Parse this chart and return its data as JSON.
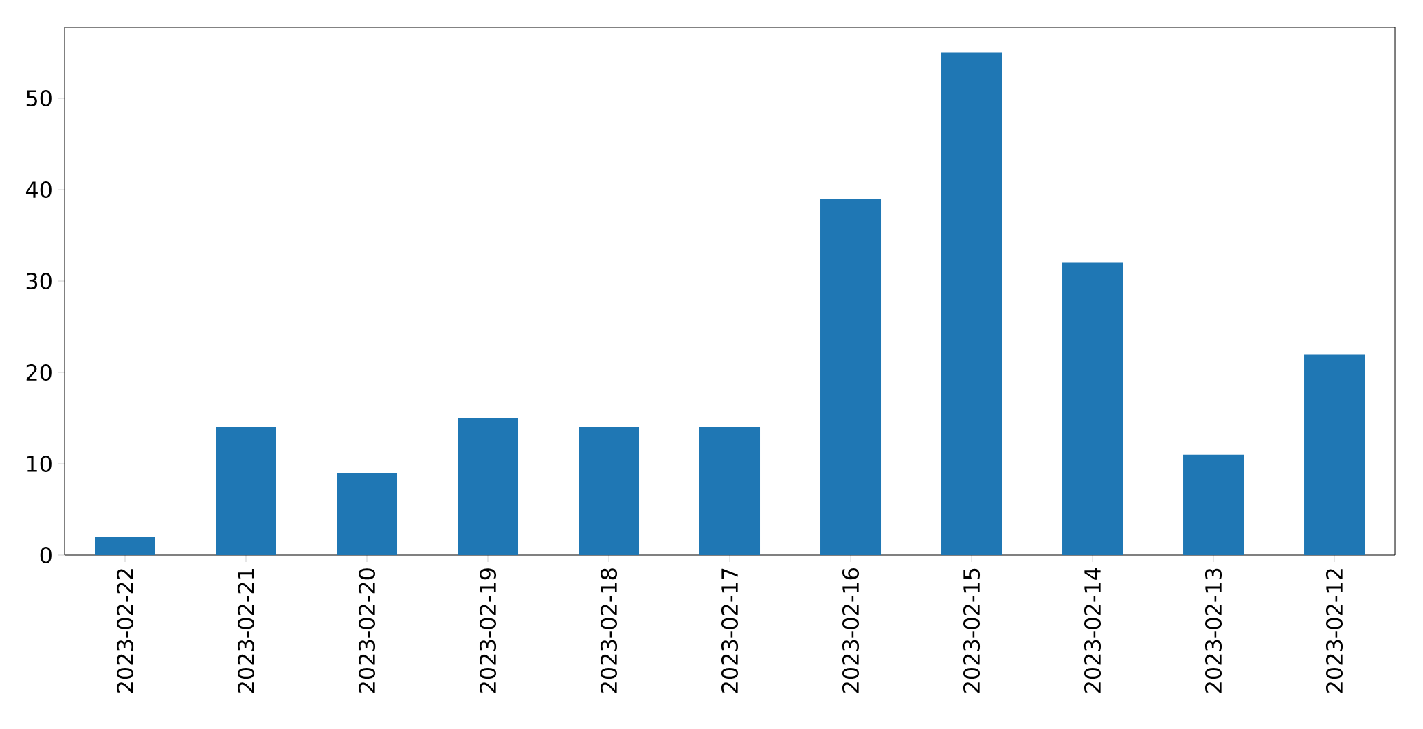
{
  "chart_data": {
    "type": "bar",
    "categories": [
      "2023-02-22",
      "2023-02-21",
      "2023-02-20",
      "2023-02-19",
      "2023-02-18",
      "2023-02-17",
      "2023-02-16",
      "2023-02-15",
      "2023-02-14",
      "2023-02-13",
      "2023-02-12"
    ],
    "values": [
      2,
      14,
      9,
      15,
      14,
      14,
      39,
      55,
      32,
      11,
      22
    ],
    "color": "#1f77b4",
    "ylim": [
      0,
      57.75
    ],
    "yticks": [
      0,
      10,
      20,
      30,
      40,
      50
    ]
  }
}
